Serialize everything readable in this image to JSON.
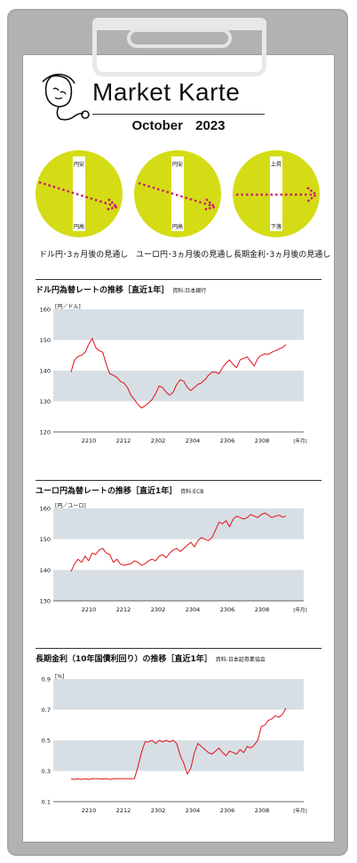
{
  "header": {
    "title": "Market Karte",
    "month": "October",
    "year": "2023"
  },
  "colors": {
    "circle_fill": "#d4dc16",
    "band": "#d7dfe4",
    "line": "#e0101a",
    "arrow": "#cc1a6e",
    "text": "#111111"
  },
  "icons": {
    "logo": "face-stethoscope-icon"
  },
  "forecasts": [
    {
      "label": "ドル円･3ヵ月後の見通し",
      "top": "円安",
      "bottom": "円高",
      "direction": "down"
    },
    {
      "label": "ユーロ円･3ヵ月後の見通し",
      "top": "円安",
      "bottom": "円高",
      "direction": "down"
    },
    {
      "label": "長期金利･3ヵ月後の見通し",
      "top": "上昇",
      "bottom": "下落",
      "direction": "flat"
    }
  ],
  "chart_data": [
    {
      "type": "line",
      "title": "ドル円為替レートの推移［直近1年］",
      "source": "資料:日本銀行",
      "ylabel": "[円／ドル]",
      "xlabel": "[年月]",
      "ylim": [
        120,
        160
      ],
      "yticks": [
        "160",
        "150",
        "140",
        "130",
        "120"
      ],
      "xticks": [
        "2210",
        "2212",
        "2302",
        "2304",
        "2306",
        "2308"
      ],
      "x": [
        0,
        4,
        8,
        12,
        16,
        20,
        24,
        28,
        32,
        36,
        40,
        44,
        48,
        52,
        56,
        60,
        64,
        68,
        72,
        76,
        80,
        84,
        88,
        92,
        96,
        100,
        104,
        108,
        112,
        116,
        120,
        124,
        128,
        132,
        136,
        140,
        144,
        148,
        152,
        156,
        160,
        164,
        168,
        172,
        176,
        180,
        184,
        188,
        192,
        196,
        200,
        204,
        208,
        212,
        216,
        220,
        224,
        228,
        232,
        236,
        240,
        244
      ],
      "values": [
        139.5,
        143.5,
        144.6,
        145.0,
        146.0,
        148.5,
        150.5,
        147.5,
        146.5,
        146.0,
        142.0,
        139.0,
        138.5,
        137.8,
        136.5,
        136.0,
        134.5,
        132.0,
        130.5,
        129.0,
        127.8,
        128.5,
        129.5,
        130.5,
        132.5,
        135.0,
        134.5,
        133.0,
        132.0,
        133.0,
        135.5,
        137.0,
        136.5,
        134.5,
        133.5,
        134.5,
        135.5,
        136.0,
        137.0,
        138.5,
        139.5,
        139.5,
        139.0,
        141.0,
        142.5,
        143.5,
        142.0,
        141.0,
        143.5,
        144.0,
        144.5,
        143.0,
        141.5,
        144.0,
        145.0,
        145.5,
        145.3,
        146.0,
        146.5,
        147.0,
        147.5,
        148.5
      ]
    },
    {
      "type": "line",
      "title": "ユーロ円為替レートの推移［直近1年］",
      "source": "資料:ECB",
      "ylabel": "[円／ユーロ]",
      "xlabel": "[年月]",
      "ylim": [
        130,
        160
      ],
      "yticks": [
        "160",
        "150",
        "140",
        "130"
      ],
      "xticks": [
        "2210",
        "2212",
        "2302",
        "2304",
        "2306",
        "2308"
      ],
      "x": [
        0,
        4,
        8,
        12,
        16,
        20,
        24,
        28,
        32,
        36,
        40,
        44,
        48,
        52,
        56,
        60,
        64,
        68,
        72,
        76,
        80,
        84,
        88,
        92,
        96,
        100,
        104,
        108,
        112,
        116,
        120,
        124,
        128,
        132,
        136,
        140,
        144,
        148,
        152,
        156,
        160,
        164,
        168,
        172,
        176,
        180,
        184,
        188,
        192,
        196,
        200,
        204,
        208,
        212,
        216,
        220,
        224,
        228,
        232,
        236,
        240,
        244
      ],
      "values": [
        139.5,
        142.0,
        143.5,
        142.5,
        144.5,
        143.0,
        145.5,
        145.0,
        146.5,
        147.0,
        145.5,
        145.0,
        142.5,
        143.5,
        142.0,
        141.5,
        141.8,
        142.0,
        143.0,
        142.5,
        141.5,
        142.0,
        143.0,
        143.5,
        143.0,
        144.5,
        145.0,
        144.0,
        145.5,
        146.5,
        147.0,
        146.0,
        147.0,
        148.0,
        149.0,
        147.5,
        149.5,
        150.5,
        150.0,
        149.5,
        150.5,
        153.0,
        155.5,
        155.0,
        156.0,
        154.0,
        156.5,
        157.5,
        157.0,
        156.5,
        157.0,
        158.0,
        157.5,
        157.0,
        158.0,
        158.5,
        157.8,
        157.0,
        157.5,
        157.8,
        157.2,
        157.5
      ]
    },
    {
      "type": "line",
      "title": "長期金利（10年国債利回り）の推移［直近1年］",
      "source": "資料:日本証券業協会",
      "ylabel": "[%]",
      "xlabel": "[年月]",
      "ylim": [
        0.1,
        0.9
      ],
      "yticks": [
        "0.9",
        "0.7",
        "0.5",
        "0.3",
        "0.1"
      ],
      "xticks": [
        "2210",
        "2212",
        "2302",
        "2304",
        "2306",
        "2308"
      ],
      "x": [
        0,
        4,
        8,
        12,
        16,
        20,
        24,
        28,
        32,
        36,
        40,
        44,
        48,
        52,
        56,
        60,
        64,
        68,
        72,
        76,
        80,
        84,
        88,
        92,
        96,
        100,
        104,
        108,
        112,
        116,
        120,
        124,
        128,
        132,
        136,
        140,
        144,
        148,
        152,
        156,
        160,
        164,
        168,
        172,
        176,
        180,
        184,
        188,
        192,
        196,
        200,
        204,
        208,
        212,
        216,
        220,
        224,
        228,
        232,
        236,
        240,
        244
      ],
      "values": [
        0.25,
        0.245,
        0.25,
        0.245,
        0.25,
        0.245,
        0.25,
        0.25,
        0.25,
        0.248,
        0.25,
        0.245,
        0.25,
        0.25,
        0.25,
        0.25,
        0.25,
        0.25,
        0.25,
        0.33,
        0.42,
        0.49,
        0.49,
        0.5,
        0.48,
        0.5,
        0.49,
        0.5,
        0.49,
        0.5,
        0.48,
        0.4,
        0.35,
        0.28,
        0.32,
        0.42,
        0.48,
        0.46,
        0.44,
        0.42,
        0.41,
        0.43,
        0.45,
        0.42,
        0.4,
        0.43,
        0.42,
        0.41,
        0.44,
        0.42,
        0.46,
        0.45,
        0.47,
        0.5,
        0.59,
        0.6,
        0.63,
        0.64,
        0.66,
        0.65,
        0.67,
        0.71
      ]
    }
  ]
}
